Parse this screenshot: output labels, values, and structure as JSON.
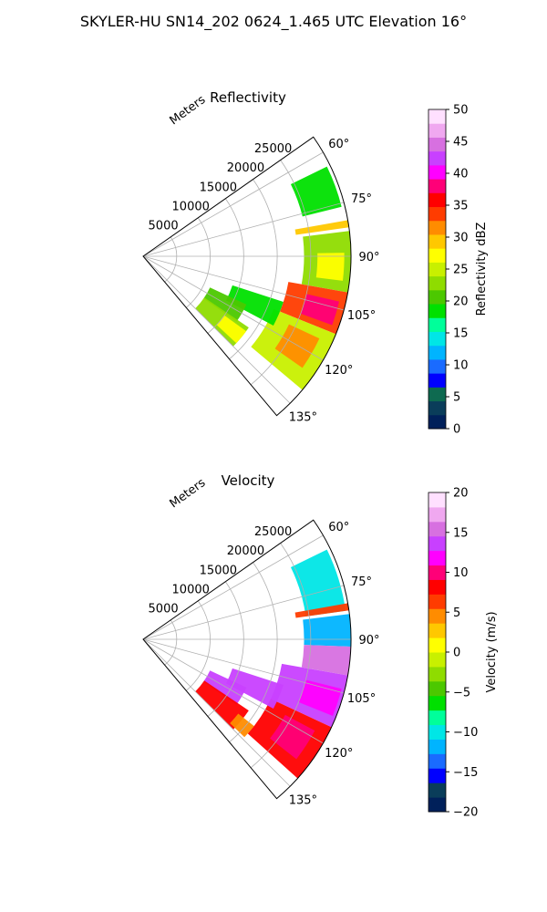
{
  "suptitle": "SKYLER-HU  SN14_202  0624_1.465 UTC Elevation 16°",
  "colors": {
    "reflectivity_scale": [
      "#00205a",
      "#0a3d5a",
      "#0e6a50",
      "#0000ff",
      "#1a6bff",
      "#00b4ff",
      "#00e6e6",
      "#00ff9a",
      "#00e000",
      "#4cc800",
      "#8fdc00",
      "#c8f000",
      "#ffff00",
      "#ffc800",
      "#ff8c00",
      "#ff3c00",
      "#ff0000",
      "#ff0078",
      "#ff00ff",
      "#c840ff",
      "#d770e0",
      "#f0a8f0",
      "#ffe0ff"
    ],
    "velocity_scale": [
      "#00205a",
      "#0a3d5a",
      "#0000ff",
      "#1a6bff",
      "#00b4ff",
      "#00e6e6",
      "#00ff9a",
      "#00e000",
      "#4cc800",
      "#8fdc00",
      "#c8f000",
      "#ffff00",
      "#ffc800",
      "#ff8c00",
      "#ff3c00",
      "#ff0000",
      "#ff0078",
      "#ff00ff",
      "#c840ff",
      "#d770e0",
      "#f0a8f0",
      "#ffe0ff"
    ]
  },
  "chart_data": [
    {
      "type": "heatmap",
      "projection": "polar-sector",
      "title": "Reflectivity",
      "radial_label": "Meters",
      "radial_ticks": [
        5000,
        10000,
        15000,
        20000,
        25000
      ],
      "radial_tick_labels": [
        "5000",
        "10000",
        "15000",
        "20000",
        "25000"
      ],
      "rlim": [
        0,
        31000
      ],
      "azimuth_range_deg": [
        55,
        140
      ],
      "azimuth_ticks": [
        60,
        75,
        90,
        105,
        120,
        135
      ],
      "azimuth_tick_labels": [
        "60°",
        "75°",
        "90°",
        "105°",
        "120°",
        "135°"
      ],
      "grid": true,
      "colorbar": {
        "label": "Reflectivity dBZ",
        "range": [
          0,
          50
        ],
        "ticks": [
          0,
          5,
          10,
          15,
          20,
          25,
          30,
          35,
          40,
          45,
          50
        ],
        "tick_labels": [
          "0",
          "5",
          "10",
          "15",
          "20",
          "25",
          "30",
          "35",
          "40",
          "45",
          "50"
        ]
      },
      "echoes": [
        {
          "az": [
            64,
            76
          ],
          "range_m": [
            24500,
            30500
          ],
          "value": 18
        },
        {
          "az": [
            80,
            82
          ],
          "range_m": [
            23000,
            31000
          ],
          "value": 30
        },
        {
          "az": [
            83,
            100
          ],
          "range_m": [
            24000,
            31000
          ],
          "value": 22
        },
        {
          "az": [
            89,
            97
          ],
          "range_m": [
            26000,
            30000
          ],
          "value": 28
        },
        {
          "az": [
            100,
            112
          ],
          "range_m": [
            22000,
            31000
          ],
          "value": 34
        },
        {
          "az": [
            103,
            110
          ],
          "range_m": [
            25000,
            30000
          ],
          "value": 38
        },
        {
          "az": [
            112,
            130
          ],
          "range_m": [
            21000,
            31000
          ],
          "value": 24
        },
        {
          "az": [
            115,
            125
          ],
          "range_m": [
            24000,
            29000
          ],
          "value": 32
        },
        {
          "az": [
            108,
            118
          ],
          "range_m": [
            14000,
            22000
          ],
          "value": 18
        },
        {
          "az": [
            115,
            125
          ],
          "range_m": [
            11000,
            17000
          ],
          "value": 20
        },
        {
          "az": [
            124,
            135
          ],
          "range_m": [
            11000,
            19000
          ],
          "value": 22
        },
        {
          "az": [
            126,
            133
          ],
          "range_m": [
            15000,
            19000
          ],
          "value": 28
        }
      ]
    },
    {
      "type": "heatmap",
      "projection": "polar-sector",
      "title": "Velocity",
      "radial_label": "Meters",
      "radial_ticks": [
        5000,
        10000,
        15000,
        20000,
        25000
      ],
      "radial_tick_labels": [
        "5000",
        "10000",
        "15000",
        "20000",
        "25000"
      ],
      "rlim": [
        0,
        31000
      ],
      "azimuth_range_deg": [
        55,
        140
      ],
      "azimuth_ticks": [
        60,
        75,
        90,
        105,
        120,
        135
      ],
      "azimuth_tick_labels": [
        "60°",
        "75°",
        "90°",
        "105°",
        "120°",
        "135°"
      ],
      "grid": true,
      "colorbar": {
        "label": "Velocity (m/s)",
        "range": [
          -20,
          20
        ],
        "ticks": [
          -20,
          -15,
          -10,
          -5,
          0,
          5,
          10,
          15,
          20
        ],
        "tick_labels": [
          "−20",
          "−15",
          "−10",
          "−5",
          "0",
          "5",
          "10",
          "15",
          "20"
        ]
      },
      "echoes": [
        {
          "az": [
            64,
            82
          ],
          "range_m": [
            24500,
            30500
          ],
          "value": -10
        },
        {
          "az": [
            80,
            82
          ],
          "range_m": [
            23000,
            31000
          ],
          "value": 6
        },
        {
          "az": [
            83,
            92
          ],
          "range_m": [
            24000,
            31000
          ],
          "value": -12
        },
        {
          "az": [
            92,
            100
          ],
          "range_m": [
            24000,
            31000
          ],
          "value": 15
        },
        {
          "az": [
            100,
            115
          ],
          "range_m": [
            21000,
            31000
          ],
          "value": 14
        },
        {
          "az": [
            104,
            112
          ],
          "range_m": [
            25000,
            30500
          ],
          "value": 12
        },
        {
          "az": [
            115,
            132
          ],
          "range_m": [
            21000,
            31000
          ],
          "value": 8
        },
        {
          "az": [
            118,
            128
          ],
          "range_m": [
            24000,
            29000
          ],
          "value": 10
        },
        {
          "az": [
            108,
            118
          ],
          "range_m": [
            14000,
            22000
          ],
          "value": 14
        },
        {
          "az": [
            115,
            125
          ],
          "range_m": [
            11000,
            17000
          ],
          "value": 14
        },
        {
          "az": [
            124,
            135
          ],
          "range_m": [
            11000,
            19000
          ],
          "value": 9
        },
        {
          "az": [
            128,
            134
          ],
          "range_m": [
            18000,
            21000
          ],
          "value": 4
        }
      ]
    }
  ]
}
